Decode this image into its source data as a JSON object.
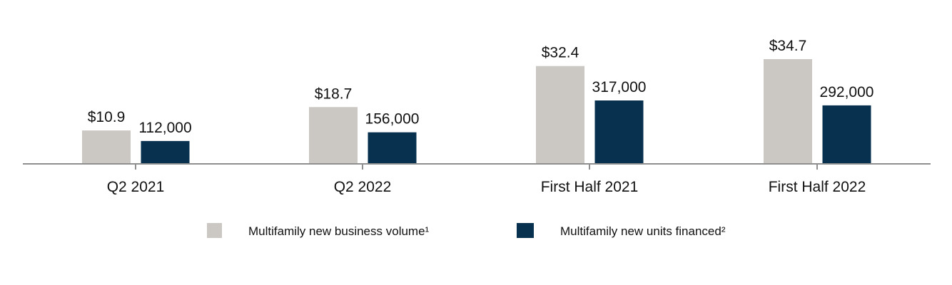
{
  "chart_data": {
    "type": "bar",
    "categories": [
      "Q2 2021",
      "Q2 2022",
      "First Half 2021",
      "First Half 2022"
    ],
    "series": [
      {
        "name": "Multifamily new business volume¹",
        "values": [
          10.9,
          18.7,
          32.4,
          34.7
        ],
        "labels": [
          "$10.9",
          "$18.7",
          "$32.4",
          "$34.7"
        ],
        "color": "#CBC8C4"
      },
      {
        "name": "Multifamily new units financed²",
        "values": [
          112000,
          156000,
          317000,
          292000
        ],
        "labels": [
          "112,000",
          "156,000",
          "317,000",
          "292,000"
        ],
        "color": "#07314F"
      }
    ],
    "axes": "independent scale per series, no y-axis shown",
    "grid": false,
    "legend_position": "bottom"
  }
}
